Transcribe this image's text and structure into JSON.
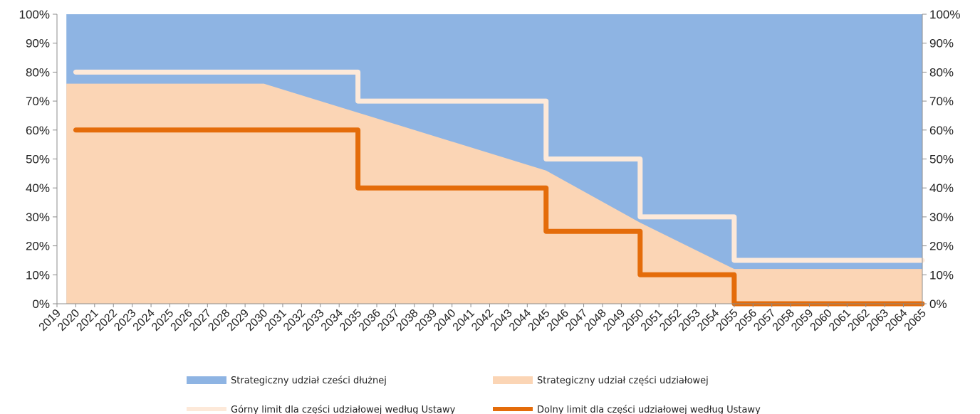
{
  "chart_data": {
    "type": "area",
    "title": "",
    "xlabel": "",
    "ylabel": "",
    "ylim": [
      0,
      100
    ],
    "y_tick_labels": [
      "0%",
      "10%",
      "20%",
      "30%",
      "40%",
      "50%",
      "60%",
      "70%",
      "80%",
      "90%",
      "100%"
    ],
    "x_start": 2019,
    "x_end": 2065,
    "x_tick_labels": [
      "2019",
      "2020",
      "2021",
      "2022",
      "2023",
      "2024",
      "2025",
      "2026",
      "2027",
      "2028",
      "2029",
      "2030",
      "2031",
      "2032",
      "2033",
      "2034",
      "2035",
      "2036",
      "2037",
      "2038",
      "2039",
      "2040",
      "2041",
      "2042",
      "2043",
      "2044",
      "2045",
      "2046",
      "2047",
      "2048",
      "2049",
      "2050",
      "2051",
      "2052",
      "2053",
      "2054",
      "2055",
      "2056",
      "2057",
      "2058",
      "2059",
      "2060",
      "2061",
      "2062",
      "2063",
      "2064",
      "2065"
    ],
    "grid": false,
    "legend_position": "bottom",
    "series": [
      {
        "name": "Strategiczny udział cześci dłużnej",
        "kind": "area-top",
        "color": "#8EB4E3",
        "x": [
          2019.5,
          2065
        ],
        "y": [
          100,
          100
        ]
      },
      {
        "name": "Strategiczny udział części udziałowej",
        "kind": "area",
        "color": "#FBD5B5",
        "x": [
          2019.5,
          2030,
          2035,
          2045,
          2050,
          2055,
          2065
        ],
        "y": [
          76,
          76,
          66,
          46,
          28,
          12,
          12
        ]
      },
      {
        "name": "Górny limit dla części udziałowej według Ustawy",
        "kind": "step-line",
        "color": "#FDE9D9",
        "x": [
          2020,
          2035,
          2035,
          2045,
          2045,
          2050,
          2050,
          2055,
          2055,
          2065
        ],
        "y": [
          80,
          80,
          70,
          70,
          50,
          50,
          30,
          30,
          15,
          15
        ]
      },
      {
        "name": "Dolny limit dla części udziałowej według Ustawy",
        "kind": "step-line",
        "color": "#E46C0A",
        "x": [
          2020,
          2035,
          2035,
          2045,
          2045,
          2050,
          2050,
          2055,
          2055,
          2065
        ],
        "y": [
          60,
          60,
          40,
          40,
          25,
          25,
          10,
          10,
          0,
          0
        ]
      }
    ]
  }
}
